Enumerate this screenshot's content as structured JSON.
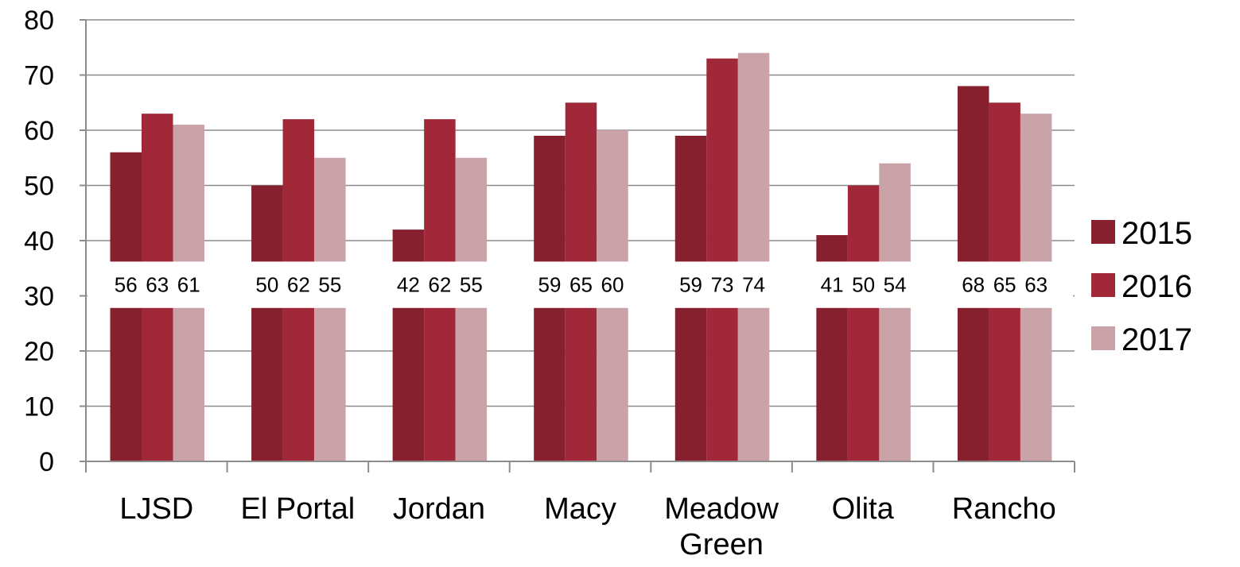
{
  "chart_data": {
    "type": "bar",
    "title": "",
    "xlabel": "",
    "ylabel": "",
    "categories": [
      [
        "LJSD"
      ],
      [
        "El Portal"
      ],
      [
        "Jordan"
      ],
      [
        "Macy"
      ],
      [
        "Meadow",
        "Green"
      ],
      [
        "Olita"
      ],
      [
        "Rancho"
      ]
    ],
    "series": [
      {
        "name": "2015",
        "color": "#861f2e",
        "values": [
          56,
          50,
          42,
          59,
          59,
          41,
          68
        ]
      },
      {
        "name": "2016",
        "color": "#a12838",
        "values": [
          63,
          62,
          62,
          65,
          73,
          50,
          65
        ]
      },
      {
        "name": "2017",
        "color": "#c9a3a7",
        "values": [
          61,
          55,
          55,
          60,
          74,
          54,
          63
        ]
      }
    ],
    "ylim": [
      0,
      80
    ],
    "yticks": [
      0,
      10,
      20,
      30,
      40,
      50,
      60,
      70,
      80
    ],
    "grid": true,
    "data_labels": true,
    "legend_position": "right"
  }
}
